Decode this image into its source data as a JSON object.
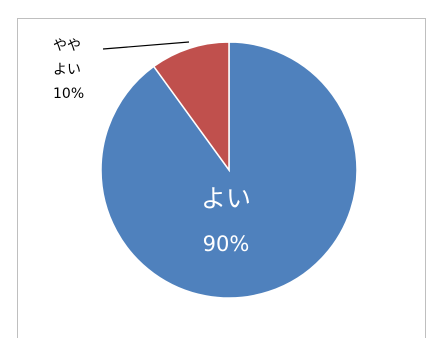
{
  "chart_data": {
    "type": "pie",
    "slices": [
      {
        "category": "よい",
        "value": 90,
        "percent_label": "90%",
        "color": "#4f81bd"
      },
      {
        "category_lines": [
          "やや",
          "よい"
        ],
        "category": "ややよい",
        "value": 10,
        "percent_label": "10%",
        "color": "#c0504d"
      }
    ],
    "start_angle_deg": 0,
    "direction": "clockwise",
    "legend": "none",
    "title": ""
  }
}
